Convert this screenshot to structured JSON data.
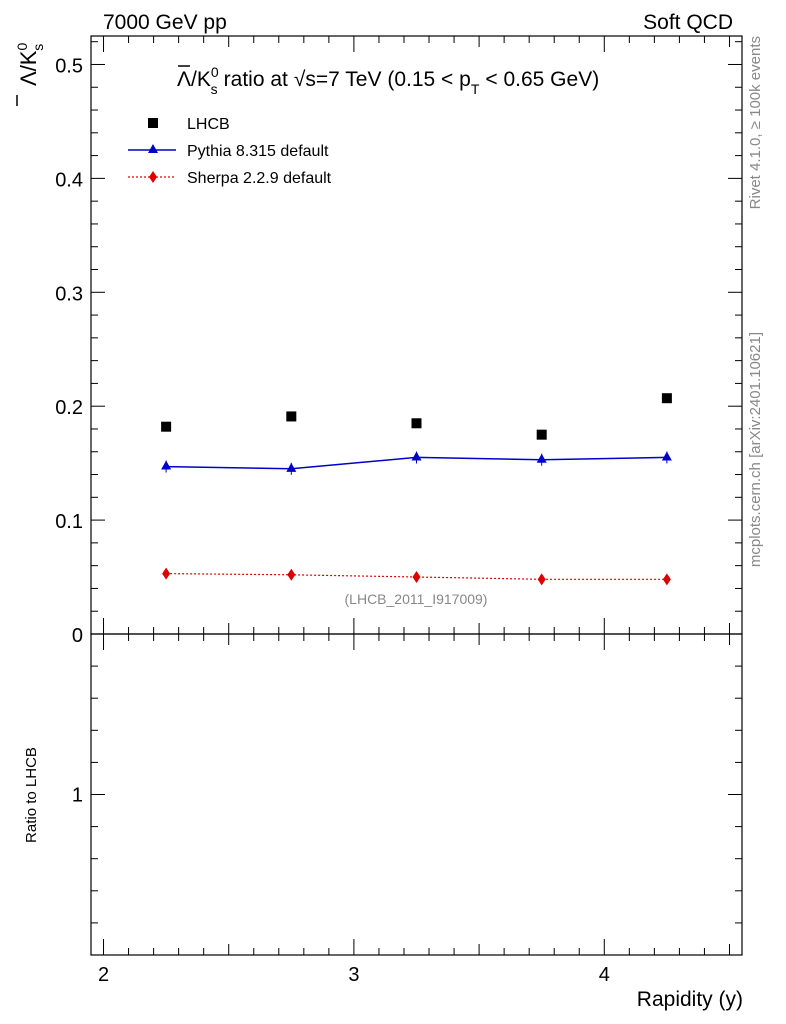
{
  "header": {
    "left": "7000 GeV pp",
    "right": "Soft QCD"
  },
  "side_text": {
    "rivet": "Rivet 4.1.0, ≥ 100k events",
    "mcplots": "mcplots.cern.ch [arXiv:2401.10621]"
  },
  "colors": {
    "lhcb": "#000000",
    "pythia": "#0000cc",
    "sherpa": "#e00000",
    "watermark": "#888888"
  },
  "chart_data": {
    "type": "scatter",
    "title": {
      "main": "ratio at",
      "sqrt_s": "s=7 TeV (0.15 < p",
      "pt_sub": "T",
      "tail": "< 0.65 GeV)"
    },
    "ylabel": {
      "main": "Λ/K",
      "sup": "0",
      "sub": "s"
    },
    "xlabel": "Rapidity (y)",
    "ratio_ylabel": "Ratio to LHCB",
    "watermark": "(LHCB_2011_I917009)",
    "xlim": [
      1.95,
      4.55
    ],
    "ylim": [
      0,
      0.525
    ],
    "ratio_ylim": [
      0.5,
      1.5
    ],
    "x_ticks": [
      "2",
      "3",
      "4"
    ],
    "y_ticks": [
      "0",
      "0.1",
      "0.2",
      "0.3",
      "0.4",
      "0.5"
    ],
    "ratio_y_ticks": [
      "1"
    ],
    "x": [
      2.25,
      2.75,
      3.25,
      3.75,
      4.25
    ],
    "series": [
      {
        "name": "LHCB",
        "marker": "square",
        "values": [
          0.182,
          0.191,
          0.185,
          0.175,
          0.207
        ]
      },
      {
        "name": "Pythia 8.315 default",
        "marker": "triangle",
        "line": "solid",
        "values": [
          0.147,
          0.145,
          0.155,
          0.153,
          0.155
        ]
      },
      {
        "name": "Sherpa 2.2.9 default",
        "marker": "diamond",
        "line": "dotted",
        "values": [
          0.053,
          0.052,
          0.05,
          0.048,
          0.048
        ]
      }
    ],
    "legend_position": "top-left"
  }
}
